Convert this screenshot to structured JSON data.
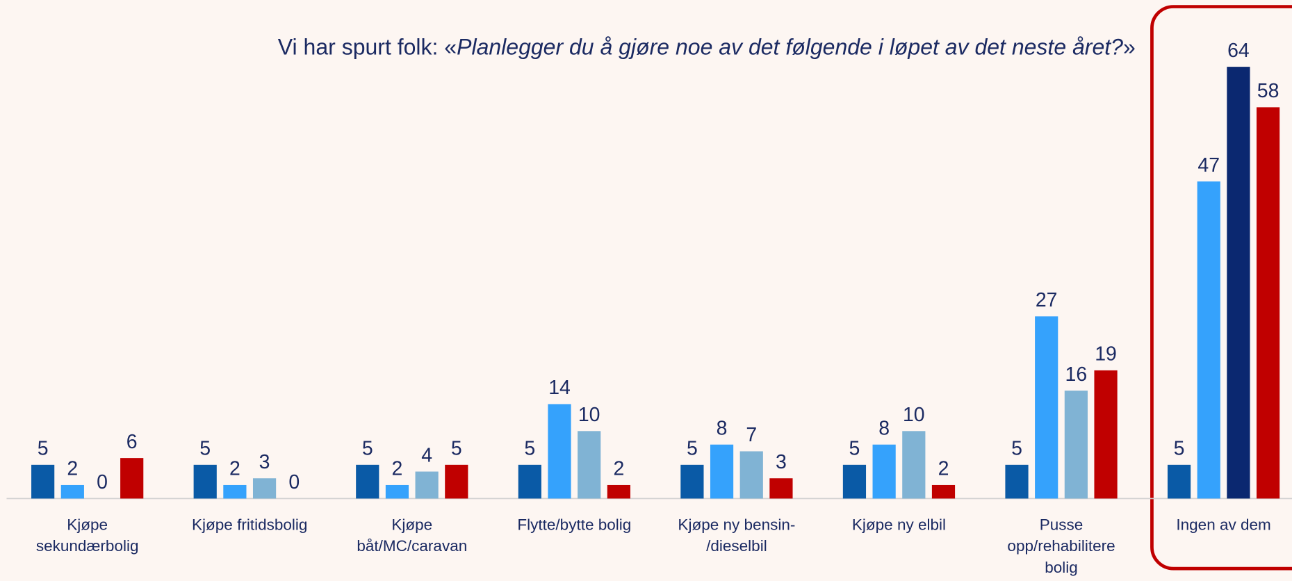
{
  "chart_data": {
    "type": "bar",
    "title": [
      "Vi har spurt folk: «",
      "Planlegger du å gjøre noe av det følgende i løpet av det neste året?",
      "»"
    ],
    "categories": [
      "Kjøpe\nsekundærbolig",
      "Kjøpe fritidsbolig",
      "Kjøpe\nbåt/MC/caravan",
      "Flytte/bytte bolig",
      "Kjøpe ny bensin-\n/dieselbil",
      "Kjøpe ny elbil",
      "Pusse\nopp/rehabilitere\nbolig",
      "Ingen av dem"
    ],
    "series": [
      {
        "color": "#0a5aa6",
        "values": [
          5,
          5,
          5,
          5,
          5,
          5,
          5,
          5
        ]
      },
      {
        "color": "#35a2fc",
        "values": [
          2,
          2,
          2,
          14,
          8,
          8,
          27,
          47
        ]
      },
      {
        "color": "#80b3d4",
        "colors": [
          "#80b3d4",
          "#80b3d4",
          "#80b3d4",
          "#80b3d4",
          "#80b3d4",
          "#80b3d4",
          "#80b3d4",
          "#0b2870"
        ],
        "values": [
          0,
          3,
          4,
          10,
          7,
          10,
          16,
          64
        ]
      },
      {
        "color": "#c00000",
        "values": [
          6,
          0,
          5,
          2,
          3,
          2,
          19,
          58
        ]
      }
    ],
    "ylim": [
      0,
      64
    ]
  }
}
